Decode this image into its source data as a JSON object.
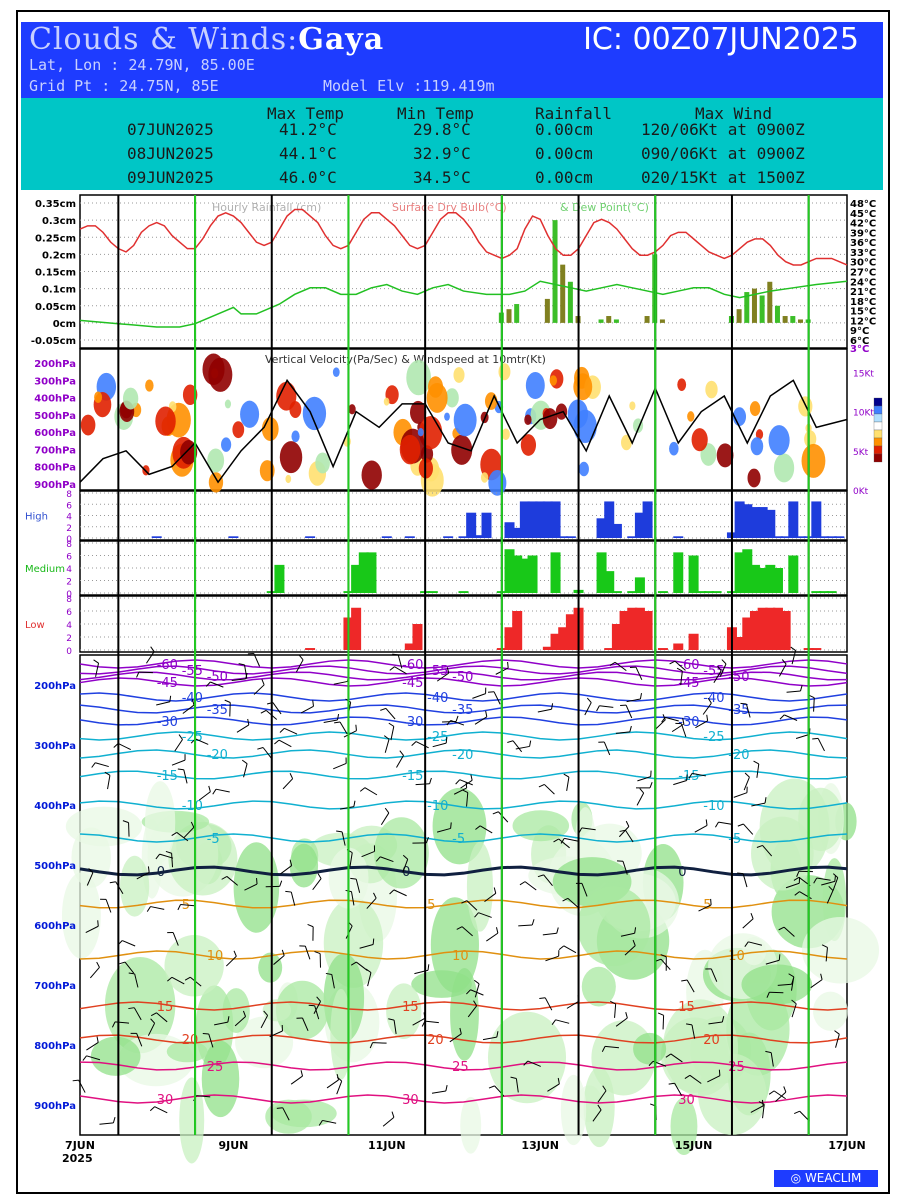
{
  "header": {
    "title_prefix": "Clouds & Winds:",
    "location": "Gaya",
    "ic": "IC: 00Z07JUN2025",
    "latlon": "Lat, Lon : 24.79N, 85.00E",
    "gridpt": "Grid Pt  : 24.75N, 85E",
    "model_elv": "Model Elv :119.419m"
  },
  "summary": {
    "columns": [
      "Max Temp",
      "Min Temp",
      "Rainfall",
      "Max Wind"
    ],
    "rows": [
      {
        "date": "07JUN2025",
        "max": "41.2°C",
        "min": "29.8°C",
        "rain": "0.00cm",
        "wind": "120/06Kt at 0900Z"
      },
      {
        "date": "08JUN2025",
        "max": "44.1°C",
        "min": "32.9°C",
        "rain": "0.00cm",
        "wind": "090/06Kt at 0900Z"
      },
      {
        "date": "09JUN2025",
        "max": "46.0°C",
        "min": "34.5°C",
        "rain": "0.00cm",
        "wind": "020/15Kt at 1500Z"
      }
    ]
  },
  "chart_data": [
    {
      "type": "line",
      "title": "Hourly Rainfall (cm) & Surface Dry Bulb(°C) & Dew Point(°C)",
      "title_parts": {
        "rain": "Hourly Rainfall (cm)",
        "dry": "Surface Dry Bulb(°C)",
        "dew": "& Dew Point(°C)"
      },
      "x_days": [
        0,
        10
      ],
      "left_ticks": [
        "0.35cm",
        "0.3cm",
        "0.25cm",
        "0.2cm",
        "0.15cm",
        "0.1cm",
        "0.05cm",
        "0cm",
        "-0.05cm"
      ],
      "left_range": [
        -0.05,
        0.35
      ],
      "right_ticks": [
        "48°C",
        "45°C",
        "42°C",
        "39°C",
        "36°C",
        "33°C",
        "30°C",
        "27°C",
        "24°C",
        "21°C",
        "18°C",
        "15°C",
        "12°C",
        "9°C",
        "6°C"
      ],
      "right_range": [
        6,
        48
      ],
      "extra_right_tick": "3°C",
      "series": [
        {
          "name": "Surface Dry Bulb(°C)",
          "color": "#e03030",
          "x": [
            0,
            0.1,
            0.2,
            0.3,
            0.4,
            0.5,
            0.6,
            0.7,
            0.8,
            0.9,
            1.0,
            1.1,
            1.2,
            1.3,
            1.4,
            1.5,
            1.6,
            1.7,
            1.8,
            1.9,
            2.0,
            2.1,
            2.2,
            2.3,
            2.4,
            2.5,
            2.6,
            2.7,
            2.8,
            2.9,
            3.0,
            3.1,
            3.2,
            3.3,
            3.4,
            3.5,
            3.6,
            3.7,
            3.8,
            3.9,
            4.0,
            4.1,
            4.2,
            4.3,
            4.4,
            4.5,
            4.6,
            4.7,
            4.8,
            4.9,
            5.0,
            5.1,
            5.2,
            5.3,
            5.4,
            5.5,
            5.6,
            5.7,
            5.8,
            5.9,
            6.0,
            6.1,
            6.2,
            6.3,
            6.4,
            6.5,
            6.6,
            6.7,
            6.8,
            6.9,
            7.0,
            7.1,
            7.2,
            7.3,
            7.4,
            7.5,
            7.6,
            7.7,
            7.8,
            7.9,
            8.0,
            8.1,
            8.2,
            8.3,
            8.4,
            8.5,
            8.6,
            8.7,
            8.8,
            8.9,
            9.0,
            9.1,
            9.2,
            9.3,
            9.4,
            9.5,
            9.6,
            9.7,
            9.8,
            9.9,
            10.0
          ],
          "y": [
            40,
            41,
            41,
            39,
            36,
            34,
            33,
            35,
            39,
            41,
            42,
            41,
            38,
            36,
            34,
            34,
            37,
            41,
            44,
            45,
            44,
            42,
            39,
            36,
            35,
            36,
            40,
            44,
            46,
            46,
            44,
            42,
            38,
            35,
            34,
            35,
            39,
            43,
            45,
            45,
            43,
            41,
            38,
            35,
            34,
            35,
            39,
            43,
            45,
            45,
            43,
            40,
            36,
            33,
            32,
            31,
            32,
            34,
            40,
            44,
            43,
            38,
            34,
            32,
            32,
            34,
            38,
            42,
            43,
            42,
            40,
            37,
            34,
            32,
            32,
            33,
            35,
            38,
            39,
            39,
            37,
            35,
            33,
            32,
            31,
            32,
            34,
            36,
            37,
            37,
            35,
            32,
            30,
            29,
            29,
            30,
            31,
            31,
            31,
            30,
            29
          ]
        },
        {
          "name": "Dew Point(°C)",
          "color": "#22c022",
          "x": [
            0,
            0.5,
            1.0,
            1.3,
            1.5,
            1.7,
            1.9,
            2.0,
            2.1,
            2.3,
            2.6,
            2.8,
            3.0,
            3.2,
            3.4,
            3.6,
            3.8,
            4.0,
            4.2,
            4.4,
            4.6,
            4.8,
            5.0,
            5.3,
            5.6,
            5.8,
            6.0,
            6.2,
            6.4,
            6.6,
            6.8,
            7.0,
            7.2,
            7.4,
            7.6,
            7.8,
            8.0,
            8.2,
            8.4,
            8.6,
            8.8,
            9.0,
            9.3,
            9.6,
            10.0
          ],
          "y": [
            12,
            11,
            10,
            10,
            11,
            13,
            15,
            16,
            14,
            14,
            17,
            20,
            22,
            22,
            20,
            20,
            22,
            23,
            21,
            20,
            22,
            23,
            21,
            20,
            20,
            21,
            24,
            23,
            22,
            21,
            22,
            23,
            22,
            21,
            20,
            21,
            22,
            22,
            20,
            19,
            20,
            21,
            22,
            23,
            24
          ]
        }
      ],
      "rain_bars": {
        "color": "#3cbe28",
        "alt_color": "#808020",
        "x": [
          5.5,
          5.6,
          5.7,
          6.1,
          6.2,
          6.3,
          6.4,
          6.5,
          6.8,
          6.9,
          7.0,
          7.4,
          7.5,
          7.6,
          8.5,
          8.6,
          8.7,
          8.8,
          8.9,
          9.0,
          9.1,
          9.2,
          9.3,
          9.4,
          9.5
        ],
        "y": [
          0.03,
          0.04,
          0.055,
          0.07,
          0.3,
          0.17,
          0.12,
          0.02,
          0.01,
          0.02,
          0.01,
          0.02,
          0.2,
          0.01,
          0.02,
          0.04,
          0.09,
          0.1,
          0.08,
          0.12,
          0.05,
          0.02,
          0.02,
          0.01,
          0.01
        ]
      }
    },
    {
      "type": "heatmap",
      "title": "Vertical Velocity(Pa/Sec) & Windspeed at 10mtr(Kt)",
      "y_ticks": [
        "200hPa",
        "300hPa",
        "400hPa",
        "500hPa",
        "600hPa",
        "700hPa",
        "800hPa",
        "900hPa"
      ],
      "right_ticks": [
        "15Kt",
        "10Kt",
        "5Kt",
        "0Kt"
      ],
      "right_range": [
        0,
        18
      ],
      "windspeed": {
        "name": "Windspeed at 10mtr(Kt)",
        "x": [
          0,
          0.3,
          0.6,
          0.9,
          1.2,
          1.5,
          1.8,
          2.1,
          2.4,
          2.7,
          3.0,
          3.3,
          3.6,
          3.9,
          4.2,
          4.5,
          4.8,
          5.1,
          5.4,
          5.7,
          6.0,
          6.3,
          6.6,
          6.9,
          7.2,
          7.5,
          7.8,
          8.1,
          8.4,
          8.7,
          9.0,
          9.3,
          9.6,
          10.0
        ],
        "y": [
          1,
          4,
          5,
          2,
          3,
          6,
          1,
          5,
          8,
          14,
          10,
          3,
          10,
          8,
          11,
          11,
          6,
          5,
          12,
          6,
          9,
          10,
          5,
          12,
          6,
          13,
          6,
          10,
          12,
          6,
          12,
          14,
          8,
          9
        ]
      }
    },
    {
      "type": "bar",
      "title": "High",
      "y_ticks": [
        "8",
        "6",
        "4",
        "2",
        "0"
      ],
      "y_range": [
        0,
        8
      ],
      "color": "#1e3cdc",
      "x": [
        1.0,
        2.0,
        3.0,
        4.0,
        4.3,
        4.8,
        5.0,
        5.1,
        5.2,
        5.3,
        5.6,
        5.7,
        5.8,
        5.9,
        6.0,
        6.1,
        6.2,
        6.3,
        6.4,
        6.8,
        6.9,
        7.0,
        7.2,
        7.3,
        7.4,
        7.8,
        8.5,
        8.6,
        8.7,
        8.8,
        8.9,
        9.0,
        9.1,
        9.2,
        9.3,
        9.4,
        9.5,
        9.6,
        9.7,
        9.8,
        9.9
      ],
      "y": [
        0.3,
        0.3,
        0.3,
        0.3,
        0.3,
        0.3,
        0.3,
        4.5,
        0.5,
        4.5,
        2.8,
        1.8,
        6.5,
        6.5,
        6.5,
        6.5,
        6.5,
        0.3,
        0.3,
        3.5,
        6.5,
        2.5,
        0.3,
        4.5,
        6.5,
        0.3,
        1.0,
        6.5,
        6.0,
        5.5,
        5.5,
        5.0,
        0.3,
        0.3,
        6.5,
        0.3,
        0.3,
        6.5,
        0.3,
        0.3,
        0.3
      ]
    },
    {
      "type": "bar",
      "title": "Medium",
      "y_ticks": [
        "8",
        "6",
        "4",
        "2",
        "0"
      ],
      "y_range": [
        0,
        8
      ],
      "color": "#18c818",
      "x": [
        2.5,
        2.6,
        3.5,
        3.6,
        3.7,
        3.8,
        4.5,
        4.6,
        5.0,
        5.5,
        5.6,
        5.7,
        5.8,
        5.9,
        6.2,
        6.5,
        6.8,
        6.9,
        7.0,
        7.2,
        7.3,
        7.6,
        7.8,
        8.0,
        8.1,
        8.2,
        8.3,
        8.5,
        8.6,
        8.7,
        8.8,
        8.9,
        9.0,
        9.1,
        9.3,
        9.6,
        9.7,
        9.8
      ],
      "y": [
        0.3,
        4.5,
        0.3,
        4.5,
        6.5,
        6.5,
        0.3,
        0.3,
        0.3,
        0.3,
        7.0,
        6.0,
        5.5,
        6.0,
        6.5,
        0.5,
        6.5,
        3.5,
        0.3,
        0.3,
        2.5,
        0.3,
        6.5,
        6.0,
        0.3,
        0.3,
        0.3,
        0.3,
        6.5,
        7.0,
        4.5,
        4.0,
        4.5,
        4.0,
        6.0,
        0.3,
        0.3,
        0.3
      ]
    },
    {
      "type": "bar",
      "title": "Low",
      "y_ticks": [
        "8",
        "6",
        "4",
        "2",
        "0"
      ],
      "y_range": [
        0,
        8
      ],
      "color": "#ee2828",
      "x": [
        3.0,
        3.5,
        3.6,
        4.3,
        4.4,
        5.5,
        5.6,
        5.7,
        6.1,
        6.2,
        6.3,
        6.4,
        6.5,
        6.9,
        7.0,
        7.1,
        7.2,
        7.3,
        7.4,
        7.6,
        7.8,
        8.0,
        8.5,
        8.6,
        8.7,
        8.8,
        8.9,
        9.0,
        9.1,
        9.2,
        9.5,
        9.6
      ],
      "y": [
        0.3,
        5.0,
        6.5,
        1.0,
        4.0,
        0.3,
        3.5,
        6.0,
        0.5,
        2.5,
        3.5,
        5.5,
        6.5,
        0.3,
        4.0,
        6.0,
        6.5,
        6.5,
        6.0,
        0.3,
        1.0,
        2.5,
        3.5,
        2.0,
        5.0,
        6.0,
        6.5,
        6.5,
        6.5,
        6.0,
        0.3,
        0.3
      ]
    },
    {
      "type": "line",
      "title": "Temperature (°C) & Relative Humidity (%) & Winds",
      "y_ticks": [
        "200hPa",
        "300hPa",
        "400hPa",
        "500hPa",
        "600hPa",
        "700hPa",
        "800hPa",
        "900hPa"
      ],
      "y_range": [
        150,
        950
      ],
      "x_ticks": [
        "7JUN",
        "9JUN",
        "11JUN",
        "13JUN",
        "15JUN",
        "17JUN"
      ],
      "x_tick_days": [
        0,
        2,
        4,
        6,
        8,
        10
      ],
      "x_year": "2025",
      "isotherms": [
        {
          "name": "-60",
          "p": 165
        },
        {
          "name": "-55",
          "p": 175
        },
        {
          "name": "-50",
          "p": 185
        },
        {
          "name": "-45",
          "p": 195
        },
        {
          "name": "-40",
          "p": 220
        },
        {
          "name": "-35",
          "p": 240
        },
        {
          "name": "-30",
          "p": 260
        },
        {
          "name": "-25",
          "p": 285
        },
        {
          "name": "-20",
          "p": 315
        },
        {
          "name": "-15",
          "p": 350
        },
        {
          "name": "-10",
          "p": 400
        },
        {
          "name": "-5",
          "p": 455
        },
        {
          "name": "0",
          "p": 510
        },
        {
          "name": "5",
          "p": 565
        },
        {
          "name": "10",
          "p": 650
        },
        {
          "name": "15",
          "p": 735
        },
        {
          "name": "20",
          "p": 790
        },
        {
          "name": "25",
          "p": 835
        },
        {
          "name": "30",
          "p": 890
        }
      ],
      "rh_labels": [
        "30",
        "50",
        "70",
        "90",
        "10"
      ]
    }
  ],
  "colors": {
    "header_bg": "#1e3cff",
    "table_bg": "#00c6c6",
    "day_line": "#000000",
    "noon_line": "#22cc22",
    "axis_label": "#9000c8",
    "pressure_label": "#0018d8"
  },
  "legend_colorbar": [
    "#00008b",
    "#4080ff",
    "#b0e0ff",
    "#ffffff",
    "#ffe070",
    "#ff9000",
    "#e02000",
    "#900000"
  ],
  "footer": {
    "logo": "WEACLIM"
  }
}
